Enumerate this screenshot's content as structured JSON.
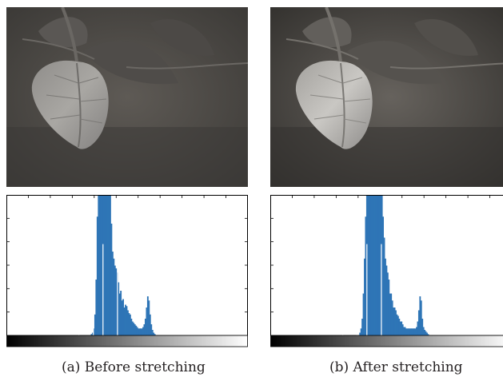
{
  "figure": {
    "panels": [
      {
        "caption": "(a) Before stretching",
        "photo_description": "grayscale leaf image, low contrast",
        "histogram": {
          "type": "histogram",
          "bar_color": "#2e75b6",
          "gradient_bar": "grayscale black-to-white",
          "ticks_y_count": 6,
          "ticks_x_count": 11
        }
      },
      {
        "caption": "(b) After stretching",
        "photo_description": "grayscale leaf image, higher contrast",
        "histogram": {
          "type": "histogram",
          "bar_color": "#2e75b6",
          "gradient_bar": "grayscale black-to-white",
          "ticks_y_count": 6,
          "ticks_x_count": 11
        }
      }
    ]
  },
  "chart_data": [
    {
      "type": "bar",
      "series": [
        {
          "values": [
            0,
            0,
            0,
            0,
            0,
            0,
            0,
            0,
            0,
            0,
            0,
            0,
            0,
            0,
            0,
            0,
            0,
            0,
            0,
            0,
            0,
            0,
            0,
            0,
            0,
            0,
            0,
            0,
            0,
            0,
            0,
            0,
            0,
            0,
            0,
            0,
            0,
            0,
            0,
            0,
            0,
            0,
            0,
            0,
            0,
            0,
            0,
            0,
            0,
            0,
            0,
            0,
            0,
            0,
            0,
            0,
            0,
            0,
            0,
            0,
            0,
            0,
            0,
            0,
            0,
            0,
            0,
            0,
            0,
            0,
            0,
            0,
            0.01,
            0.02,
            0.05,
            0.15,
            0.4,
            0.85,
            1,
            1,
            1,
            1,
            1,
            1,
            1,
            1,
            1,
            1,
            1,
            0.8,
            0.6,
            0.55,
            0.5,
            0.48,
            0.45,
            0.38,
            0.3,
            0.32,
            0.25,
            0.26,
            0.2,
            0.22,
            0.21,
            0.18,
            0.16,
            0.15,
            0.12,
            0.1,
            0.09,
            0.08,
            0.07,
            0.06,
            0.05,
            0.05,
            0.05,
            0.05,
            0.06,
            0.08,
            0.12,
            0.2,
            0.28,
            0.25,
            0.15,
            0.08,
            0.04,
            0.02,
            0.01,
            0,
            0,
            0,
            0,
            0,
            0,
            0,
            0,
            0,
            0,
            0,
            0,
            0,
            0,
            0,
            0,
            0,
            0,
            0,
            0,
            0,
            0,
            0,
            0,
            0,
            0,
            0,
            0,
            0,
            0,
            0,
            0,
            0,
            0,
            0,
            0,
            0,
            0,
            0,
            0,
            0,
            0,
            0,
            0,
            0,
            0,
            0,
            0,
            0,
            0,
            0,
            0,
            0,
            0,
            0,
            0,
            0,
            0,
            0,
            0,
            0,
            0,
            0,
            0,
            0,
            0,
            0,
            0,
            0,
            0,
            0,
            0,
            0,
            0,
            0,
            0,
            0,
            0,
            0
          ]
        }
      ],
      "ylim": [
        0,
        1
      ],
      "grid": false
    },
    {
      "type": "bar",
      "series": [
        {
          "values": [
            0,
            0,
            0,
            0,
            0,
            0,
            0,
            0,
            0,
            0,
            0,
            0,
            0,
            0,
            0,
            0,
            0,
            0,
            0,
            0,
            0,
            0,
            0,
            0,
            0,
            0,
            0,
            0,
            0,
            0,
            0,
            0,
            0,
            0,
            0,
            0,
            0,
            0,
            0,
            0,
            0,
            0,
            0,
            0,
            0,
            0,
            0,
            0,
            0,
            0,
            0,
            0,
            0,
            0,
            0,
            0,
            0,
            0,
            0,
            0,
            0,
            0,
            0,
            0,
            0,
            0,
            0,
            0,
            0,
            0,
            0,
            0,
            0,
            0,
            0,
            0,
            0,
            0.02,
            0.05,
            0.12,
            0.3,
            0.55,
            0.85,
            1,
            1,
            1,
            1,
            1,
            1,
            1,
            1,
            1,
            1,
            1,
            1,
            1,
            1,
            0.85,
            0.7,
            0.55,
            0.5,
            0.45,
            0.4,
            0.3,
            0.3,
            0.25,
            0.2,
            0.2,
            0.18,
            0.15,
            0.14,
            0.12,
            0.1,
            0.1,
            0.08,
            0.06,
            0.06,
            0.05,
            0.05,
            0.05,
            0.05,
            0.05,
            0.05,
            0.05,
            0.05,
            0.05,
            0.06,
            0.1,
            0.18,
            0.28,
            0.25,
            0.12,
            0.06,
            0.04,
            0.03,
            0.02,
            0.01,
            0,
            0,
            0,
            0,
            0,
            0,
            0,
            0,
            0,
            0,
            0,
            0,
            0,
            0,
            0,
            0,
            0,
            0,
            0,
            0,
            0,
            0,
            0,
            0,
            0,
            0,
            0,
            0,
            0,
            0,
            0,
            0,
            0,
            0,
            0,
            0,
            0,
            0,
            0,
            0,
            0,
            0,
            0,
            0,
            0,
            0,
            0,
            0,
            0,
            0,
            0,
            0,
            0,
            0,
            0,
            0,
            0,
            0,
            0,
            0,
            0,
            0,
            0,
            0,
            0,
            0,
            0,
            0,
            0,
            0,
            0,
            0
          ]
        }
      ],
      "ylim": [
        0,
        1
      ],
      "grid": false
    }
  ]
}
